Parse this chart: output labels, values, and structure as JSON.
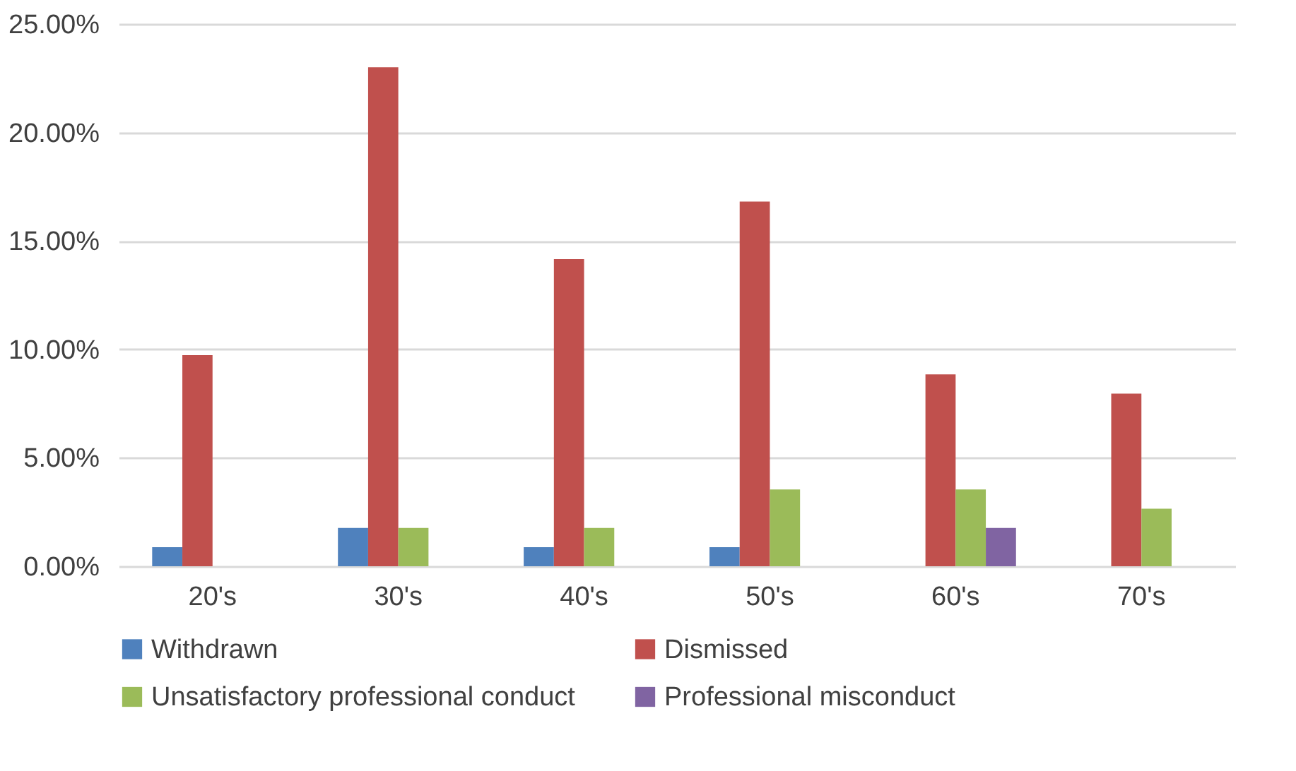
{
  "chart_data": {
    "type": "bar",
    "categories": [
      "20's",
      "30's",
      "40's",
      "50's",
      "60's",
      "70's"
    ],
    "series": [
      {
        "name": "Withdrawn",
        "color": "#4f81bd",
        "values": [
          0.88,
          1.77,
          0.88,
          0.88,
          null,
          null
        ]
      },
      {
        "name": "Dismissed",
        "color": "#c0504d",
        "values": [
          9.73,
          23.01,
          14.16,
          16.81,
          8.85,
          7.96
        ]
      },
      {
        "name": "Unsatisfactory professional conduct",
        "color": "#9bbb59",
        "values": [
          null,
          1.77,
          1.77,
          3.54,
          3.54,
          2.65
        ]
      },
      {
        "name": "Professional misconduct",
        "color": "#8064a2",
        "values": [
          null,
          null,
          null,
          null,
          1.77,
          null
        ]
      }
    ],
    "ylim": [
      0,
      25
    ],
    "yticks": [
      {
        "value": 0,
        "label": "0.00%"
      },
      {
        "value": 5,
        "label": "5.00%"
      },
      {
        "value": 10,
        "label": "10.00%"
      },
      {
        "value": 15,
        "label": "15.00%"
      },
      {
        "value": 20,
        "label": "20.00%"
      },
      {
        "value": 25,
        "label": "25.00%"
      }
    ],
    "grid": "y",
    "legend": "bottom"
  }
}
